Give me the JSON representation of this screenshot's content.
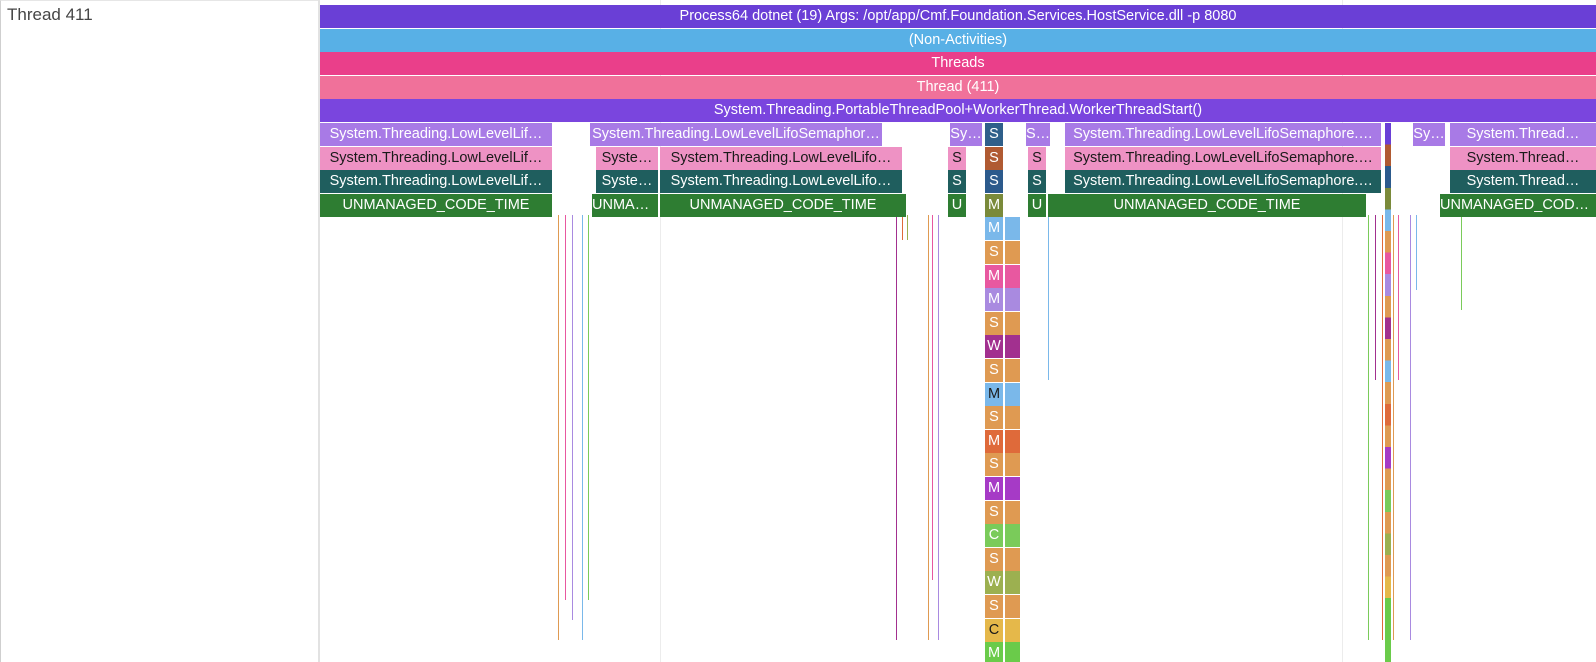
{
  "left_panel": {
    "title": "Thread 411"
  },
  "rows": [
    {
      "blocks": [
        {
          "label": "Process64 dotnet (19) Args: /opt/app/Cmf.Foundation.Services.HostService.dll -p 8080",
          "color": "#6a3fd6"
        }
      ]
    },
    {
      "blocks": [
        {
          "label": "(Non-Activities)",
          "color": "#58b0e6"
        }
      ]
    },
    {
      "blocks": [
        {
          "label": "Threads",
          "color": "#ea3f8a"
        }
      ]
    },
    {
      "blocks": [
        {
          "label": "Thread (411)",
          "color": "#f0719a"
        }
      ]
    },
    {
      "blocks": [
        {
          "label": "System.Threading.PortableThreadPool+WorkerThread.WorkerThreadStart()",
          "color": "#7a45de"
        }
      ]
    },
    {
      "blocks": [
        {
          "label": "System.Threading.LowLevelLif…",
          "color": "#a87ae6"
        },
        {
          "label": "System.Threading.LowLevelLifoSemaphor…",
          "color": "#a87ae6"
        },
        {
          "label": "Sy…",
          "color": "#a87ae6"
        },
        {
          "label": "S",
          "color": "#2f5f8a"
        },
        {
          "label": "S…",
          "color": "#a87ae6"
        },
        {
          "label": "System.Threading.LowLevelLifoSemaphore.…",
          "color": "#a87ae6"
        },
        {
          "label": "Sy…",
          "color": "#a87ae6"
        },
        {
          "label": "System.Thread…",
          "color": "#a87ae6"
        }
      ]
    },
    {
      "blocks": [
        {
          "label": "System.Threading.LowLevelLif…",
          "color": "#ee92c4",
          "dark": true
        },
        {
          "label": "Syste…",
          "color": "#ee92c4",
          "dark": true
        },
        {
          "label": "System.Threading.LowLevelLifo…",
          "color": "#ee92c4",
          "dark": true
        },
        {
          "label": "S",
          "color": "#ee92c4",
          "dark": true
        },
        {
          "label": "S",
          "color": "#b05a32"
        },
        {
          "label": "S",
          "color": "#ee92c4",
          "dark": true
        },
        {
          "label": "System.Threading.LowLevelLifoSemaphore.…",
          "color": "#ee92c4",
          "dark": true
        },
        {
          "label": "System.Thread…",
          "color": "#ee92c4",
          "dark": true
        }
      ]
    },
    {
      "blocks": [
        {
          "label": "System.Threading.LowLevelLif…",
          "color": "#1f5e5e"
        },
        {
          "label": "Syste…",
          "color": "#1f5e5e"
        },
        {
          "label": "System.Threading.LowLevelLifo…",
          "color": "#1f5e5e"
        },
        {
          "label": "S",
          "color": "#1f5e5e"
        },
        {
          "label": "S",
          "color": "#2c5a8c"
        },
        {
          "label": "S",
          "color": "#1f5e5e"
        },
        {
          "label": "System.Threading.LowLevelLifoSemaphore.…",
          "color": "#1f5e5e"
        },
        {
          "label": "System.Thread…",
          "color": "#1f5e5e"
        }
      ]
    },
    {
      "blocks": [
        {
          "label": "UNMANAGED_CODE_TIME",
          "color": "#2e7d32"
        },
        {
          "label": "UNMAN…",
          "color": "#2e7d32"
        },
        {
          "label": "UNMANAGED_CODE_TIME",
          "color": "#2e7d32"
        },
        {
          "label": "U",
          "color": "#2e7d32"
        },
        {
          "label": "M",
          "color": "#7a8a3a"
        },
        {
          "label": "U",
          "color": "#2e7d32"
        },
        {
          "label": "UNMANAGED_CODE_TIME",
          "color": "#2e7d32"
        },
        {
          "label": "UNMANAGED_CODE_TIME",
          "color": "#2e7d32"
        }
      ]
    }
  ],
  "stack_column": [
    {
      "label": "M",
      "color": "#7ab8ea"
    },
    {
      "label": "S",
      "color": "#df9a52"
    },
    {
      "label": "M",
      "color": "#e858a0"
    },
    {
      "label": "M",
      "color": "#a98ae0"
    },
    {
      "label": "S",
      "color": "#df9a52"
    },
    {
      "label": "W",
      "color": "#a2308f"
    },
    {
      "label": "S",
      "color": "#df9a52"
    },
    {
      "label": "M",
      "color": "#7ab8ea",
      "dark": true
    },
    {
      "label": "S",
      "color": "#df9a52"
    },
    {
      "label": "M",
      "color": "#df6a3a"
    },
    {
      "label": "S",
      "color": "#df9a52"
    },
    {
      "label": "M",
      "color": "#a63ac6"
    },
    {
      "label": "S",
      "color": "#df9a52"
    },
    {
      "label": "C",
      "color": "#7acb5a"
    },
    {
      "label": "S",
      "color": "#df9a52"
    },
    {
      "label": "W",
      "color": "#9cb050"
    },
    {
      "label": "S",
      "color": "#df9a52"
    },
    {
      "label": "C",
      "color": "#e5b84a",
      "dark": true
    },
    {
      "label": "M",
      "color": "#6acb4a"
    }
  ]
}
